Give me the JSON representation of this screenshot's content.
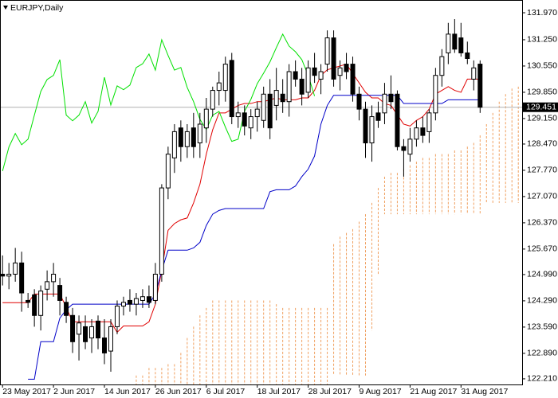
{
  "chart_data": {
    "type": "candlestick",
    "title": "EURJPY,Daily",
    "categories": [
      "23 May 2017",
      null,
      null,
      null,
      null,
      null,
      null,
      null,
      "2 Jun 2017",
      null,
      null,
      null,
      null,
      null,
      null,
      null,
      "14 Jun 2017",
      null,
      null,
      null,
      null,
      null,
      null,
      null,
      "26 Jun 2017",
      null,
      null,
      null,
      null,
      null,
      null,
      null,
      "6 Jul 2017",
      null,
      null,
      null,
      null,
      null,
      null,
      null,
      "18 Jul 2017",
      null,
      null,
      null,
      null,
      null,
      null,
      null,
      "28 Jul 2017",
      null,
      null,
      null,
      null,
      null,
      null,
      null,
      "9 Aug 2017",
      null,
      null,
      null,
      null,
      null,
      null,
      null,
      "21 Aug 2017",
      null,
      null,
      null,
      null,
      null,
      null,
      null,
      "31 Aug 2017",
      null,
      null,
      null,
      null,
      null,
      null,
      null,
      null,
      null
    ],
    "open": [
      125.0,
      124.95,
      125.0,
      125.3,
      124.3,
      124.45,
      123.9,
      124.6,
      124.8,
      124.7,
      124.25,
      123.9,
      123.4,
      123.6,
      123.3,
      123.75,
      123.3,
      122.95,
      123.6,
      124.15,
      124.3,
      124.2,
      124.3,
      124.4,
      124.3,
      125.0,
      127.3,
      128.1,
      128.9,
      128.4,
      128.9,
      128.5,
      128.9,
      129.4,
      129.9,
      129.9,
      130.7,
      129.2,
      129.3,
      128.9,
      129.2,
      129.1,
      129.8,
      129.5,
      129.8,
      129.6,
      130.4,
      130.2,
      129.85,
      130.5,
      130.2,
      130.6,
      131.3,
      130.3,
      130.6,
      130.6,
      129.8,
      129.4,
      128.5,
      129.3,
      129.3,
      129.8,
      129.8,
      128.4,
      128.2,
      128.6,
      128.9,
      128.8,
      129.3,
      130.3,
      130.9,
      131.4,
      131.3,
      130.9,
      130.2,
      130.6,
      null,
      null,
      null,
      null,
      null,
      null
    ],
    "high": [
      125.5,
      125.3,
      125.7,
      125.6,
      124.5,
      124.6,
      124.7,
      125.1,
      125.3,
      124.9,
      124.4,
      124.1,
      123.9,
      123.9,
      123.8,
      123.9,
      123.8,
      123.8,
      124.3,
      124.4,
      124.6,
      124.5,
      124.6,
      124.7,
      125.3,
      127.4,
      128.4,
      129.0,
      129.1,
      129.0,
      129.3,
      129.3,
      129.7,
      130.0,
      130.4,
      130.8,
      130.9,
      129.6,
      129.5,
      129.4,
      129.6,
      130.0,
      130.2,
      130.5,
      130.2,
      130.6,
      130.7,
      130.5,
      130.7,
      130.9,
      130.6,
      131.5,
      131.5,
      130.7,
      130.9,
      130.8,
      130.0,
      129.6,
      129.5,
      129.6,
      130.1,
      130.3,
      129.9,
      128.6,
      128.9,
      129.1,
      129.2,
      129.4,
      130.5,
      131.0,
      131.7,
      131.8,
      131.7,
      131.2,
      130.7,
      130.7,
      null,
      null,
      null,
      null,
      null,
      null
    ],
    "low": [
      124.7,
      124.6,
      124.8,
      124.0,
      124.1,
      123.6,
      123.5,
      124.3,
      124.4,
      123.9,
      123.7,
      122.9,
      122.7,
      123.0,
      122.9,
      123.0,
      122.6,
      122.4,
      123.4,
      123.9,
      124.0,
      123.9,
      124.1,
      124.1,
      124.2,
      124.8,
      127.0,
      127.7,
      128.0,
      128.1,
      128.1,
      128.1,
      128.5,
      129.2,
      129.5,
      129.6,
      129.0,
      128.9,
      128.7,
      128.6,
      128.8,
      128.9,
      128.6,
      129.1,
      129.3,
      129.2,
      130.0,
      129.5,
      129.7,
      130.1,
      129.8,
      130.4,
      130.0,
      129.9,
      130.2,
      129.6,
      129.1,
      128.1,
      128.0,
      128.9,
      129.0,
      129.4,
      128.3,
      127.6,
      128.0,
      128.4,
      128.5,
      128.5,
      129.1,
      130.0,
      130.6,
      130.9,
      130.8,
      130.6,
      129.9,
      129.3,
      null,
      null,
      null,
      null,
      null,
      null
    ],
    "close": [
      124.95,
      125.0,
      125.3,
      124.5,
      124.25,
      123.9,
      124.55,
      124.8,
      125.0,
      124.3,
      123.9,
      123.2,
      123.7,
      123.2,
      123.6,
      123.3,
      122.9,
      123.6,
      124.15,
      124.25,
      124.2,
      124.35,
      124.4,
      124.25,
      125.0,
      127.3,
      128.2,
      128.8,
      128.4,
      128.8,
      128.4,
      129.0,
      129.4,
      129.9,
      130.1,
      130.6,
      129.2,
      129.3,
      128.95,
      129.2,
      129.4,
      129.8,
      128.9,
      129.9,
      129.6,
      130.4,
      130.2,
      129.8,
      130.5,
      130.3,
      130.4,
      131.3,
      130.2,
      130.5,
      130.4,
      129.8,
      129.4,
      128.5,
      129.2,
      129.1,
      129.8,
      129.6,
      128.4,
      128.3,
      128.6,
      128.9,
      128.7,
      129.3,
      130.3,
      130.8,
      131.4,
      131.0,
      130.9,
      130.75,
      130.5,
      129.451,
      null,
      null,
      null,
      null,
      null,
      null
    ],
    "bull_color": "#ffffff",
    "bear_color": "#000000",
    "lines": [
      {
        "color": "#e00000",
        "values": [
          124.24,
          124.24,
          124.24,
          124.24,
          124.24,
          124.47,
          124.47,
          124.47,
          124.47,
          124.47,
          124.12,
          123.73,
          123.73,
          123.73,
          123.73,
          123.73,
          123.73,
          123.73,
          123.45,
          123.62,
          123.62,
          123.62,
          123.62,
          123.73,
          124.2,
          125.1,
          126.17,
          126.35,
          126.45,
          126.5,
          126.9,
          127.4,
          128.2,
          128.85,
          129.3,
          129.3,
          129.4,
          129.5,
          129.55,
          129.55,
          129.6,
          129.6,
          129.65,
          129.7,
          129.65,
          129.65,
          129.65,
          129.7,
          129.7,
          129.9,
          130.3,
          130.45,
          130.5,
          130.55,
          130.6,
          130.35,
          130.1,
          129.85,
          129.7,
          129.7,
          129.55,
          129.5,
          129.25,
          129.0,
          128.95,
          129.1,
          129.2,
          129.4,
          129.8,
          129.9,
          130.0,
          129.9,
          129.85,
          130.2,
          130.2,
          130.2,
          null,
          null,
          null,
          null,
          null,
          null
        ]
      },
      {
        "color": "#0000c8",
        "values": [
          null,
          null,
          null,
          null,
          122.2,
          122.2,
          123.2,
          123.2,
          123.2,
          123.83,
          124.05,
          124.2,
          124.2,
          124.2,
          124.2,
          124.2,
          124.2,
          124.2,
          124.2,
          124.2,
          124.2,
          124.2,
          124.2,
          124.2,
          124.47,
          125.1,
          125.64,
          125.64,
          125.64,
          125.64,
          125.7,
          125.85,
          126.3,
          126.6,
          126.7,
          126.75,
          126.75,
          126.75,
          126.75,
          126.75,
          126.75,
          126.75,
          127.2,
          127.25,
          127.25,
          127.25,
          127.35,
          127.6,
          127.8,
          128.15,
          129.0,
          129.5,
          129.77,
          129.77,
          129.77,
          129.77,
          129.77,
          129.77,
          129.77,
          129.77,
          129.77,
          129.77,
          129.77,
          129.55,
          129.55,
          129.55,
          129.55,
          129.55,
          129.55,
          129.55,
          129.65,
          129.65,
          129.65,
          129.65,
          129.65,
          129.65,
          null,
          null,
          null,
          null,
          null,
          null
        ]
      },
      {
        "color": "#00e000",
        "values": [
          127.75,
          128.39,
          128.75,
          128.45,
          128.6,
          129.24,
          129.87,
          130.19,
          130.3,
          130.72,
          129.24,
          129.09,
          129.24,
          129.6,
          129.03,
          129.34,
          130.25,
          129.51,
          130.02,
          129.92,
          130.04,
          130.51,
          130.61,
          130.87,
          130.44,
          131.25,
          130.83,
          130.44,
          130.51,
          129.98,
          129.6,
          129.13,
          128.86,
          129.24,
          129.34,
          128.92,
          128.54,
          128.6,
          129.34,
          129.66,
          130.08,
          130.36,
          130.66,
          131.04,
          131.4,
          131.08,
          130.93,
          130.72,
          130.3,
          129.75,
          null,
          null,
          null,
          null,
          null,
          null,
          null,
          null,
          null,
          null,
          null,
          null,
          null,
          null,
          null,
          null,
          null,
          null,
          null,
          null,
          null,
          null,
          null,
          null,
          null,
          null,
          null,
          null,
          null,
          null,
          null,
          null
        ]
      }
    ],
    "cloud": {
      "color": "#f0a060",
      "span_a": [
        null,
        null,
        null,
        null,
        null,
        null,
        null,
        null,
        null,
        null,
        null,
        null,
        null,
        null,
        null,
        null,
        null,
        null,
        null,
        null,
        null,
        122.3,
        122.3,
        122.5,
        122.5,
        122.5,
        122.6,
        122.6,
        122.9,
        123.3,
        123.6,
        123.9,
        124.1,
        124.3,
        124.3,
        124.3,
        124.3,
        124.3,
        124.3,
        124.3,
        124.3,
        124.3,
        124.3,
        124.2,
        124.1,
        124.1,
        124.1,
        124.1,
        124.1,
        124.1,
        124.1,
        124.1,
        125.8,
        126.0,
        126.1,
        126.2,
        126.4,
        126.6,
        126.9,
        127.3,
        127.6,
        127.7,
        127.7,
        127.8,
        127.9,
        128.0,
        128.1,
        128.1,
        128.2,
        128.2,
        128.2,
        128.3,
        128.3,
        128.4,
        128.5,
        128.7,
        129.0,
        129.3,
        129.6,
        129.8,
        129.95,
        130.0
      ],
      "span_b": [
        null,
        null,
        null,
        null,
        null,
        null,
        null,
        null,
        null,
        null,
        null,
        null,
        null,
        null,
        null,
        null,
        null,
        null,
        null,
        null,
        null,
        122.0,
        122.0,
        122.0,
        122.0,
        122.0,
        122.0,
        122.0,
        122.0,
        122.0,
        122.0,
        122.0,
        122.0,
        122.0,
        122.0,
        122.0,
        122.0,
        122.0,
        122.0,
        122.0,
        122.0,
        122.0,
        122.0,
        122.0,
        122.0,
        122.0,
        122.0,
        122.0,
        122.0,
        122.0,
        122.0,
        122.0,
        122.3,
        122.3,
        122.3,
        122.3,
        122.3,
        122.3,
        123.5,
        125.0,
        126.6,
        126.6,
        126.6,
        126.6,
        126.6,
        126.6,
        126.6,
        126.6,
        126.6,
        126.6,
        126.6,
        126.6,
        126.6,
        126.6,
        126.6,
        126.6,
        126.9,
        126.9,
        126.9,
        126.9,
        126.9,
        126.9
      ]
    },
    "last_price": {
      "value": 129.451,
      "label": "129.451"
    },
    "ylim": [
      122.06,
      132.31
    ],
    "yticks": [
      {
        "value": 131.97,
        "label": "131.970"
      },
      {
        "value": 131.25,
        "label": "131.250"
      },
      {
        "value": 130.55,
        "label": "130.550"
      },
      {
        "value": 129.85,
        "label": "129.850"
      },
      {
        "value": 129.15,
        "label": "129.150"
      },
      {
        "value": 128.47,
        "label": "128.470"
      },
      {
        "value": 127.77,
        "label": "127.770"
      },
      {
        "value": 127.07,
        "label": "127.070"
      },
      {
        "value": 126.37,
        "label": "126.370"
      },
      {
        "value": 125.67,
        "label": "125.670"
      },
      {
        "value": 124.99,
        "label": "124.990"
      },
      {
        "value": 124.29,
        "label": "124.290"
      },
      {
        "value": 123.59,
        "label": "123.590"
      },
      {
        "value": 122.89,
        "label": "122.890"
      },
      {
        "value": 122.21,
        "label": "122.210"
      }
    ]
  }
}
